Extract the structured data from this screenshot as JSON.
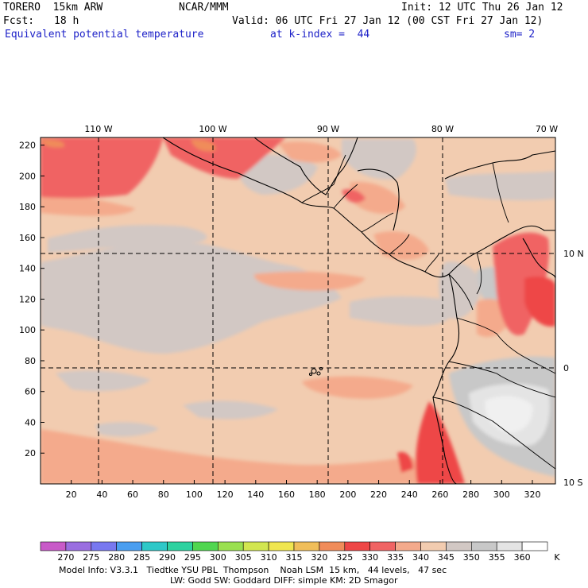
{
  "header": {
    "model": "TORERO  15km ARW",
    "center": "NCAR/MMM",
    "init": "Init: 12 UTC Thu 26 Jan 12",
    "fcst_label": "Fcst:",
    "fcst_value": "18 h",
    "valid": "Valid: 06 UTC Fri 27 Jan 12 (00 CST Fri 27 Jan 12)",
    "field": "Equivalent potential temperature",
    "level": "at k-index =  44",
    "smoothing": "sm= 2"
  },
  "map": {
    "top_lon_labels": [
      "110 W",
      "100 W",
      "90 W",
      "80 W",
      "70 W"
    ],
    "right_lat_labels": [
      "10 N",
      "0",
      "10 S"
    ],
    "y_ticks": [
      "220",
      "200",
      "180",
      "160",
      "140",
      "120",
      "100",
      "80",
      "60",
      "40",
      "20"
    ],
    "x_ticks": [
      "20",
      "40",
      "60",
      "80",
      "100",
      "120",
      "140",
      "160",
      "180",
      "200",
      "220",
      "240",
      "260",
      "280",
      "300",
      "320"
    ]
  },
  "colorbar": {
    "unit": "K",
    "labels": [
      "270",
      "275",
      "280",
      "285",
      "290",
      "295",
      "300",
      "305",
      "310",
      "315",
      "320",
      "325",
      "330",
      "335",
      "340",
      "345",
      "350",
      "355",
      "360"
    ],
    "colors": [
      "#c85ac8",
      "#9a6ee0",
      "#7878f0",
      "#4a9ef0",
      "#2ec8c8",
      "#2ed2a0",
      "#50d650",
      "#9ae050",
      "#d2e650",
      "#f0e650",
      "#f0be5a",
      "#f08c5a",
      "#ee4646",
      "#f06464",
      "#f4aa8c",
      "#f2ccb0",
      "#d2c8c4",
      "#c8c8c8",
      "#e4e4e4",
      "#ffffff"
    ]
  },
  "footer": {
    "line1": "Model Info: V3.3.1   Tiedtke YSU PBL  Thompson    Noah LSM  15 km,   44 levels,   47 sec",
    "line2": "LW: Godd SW: Goddard DIFF: simple KM: 2D Smagor"
  }
}
